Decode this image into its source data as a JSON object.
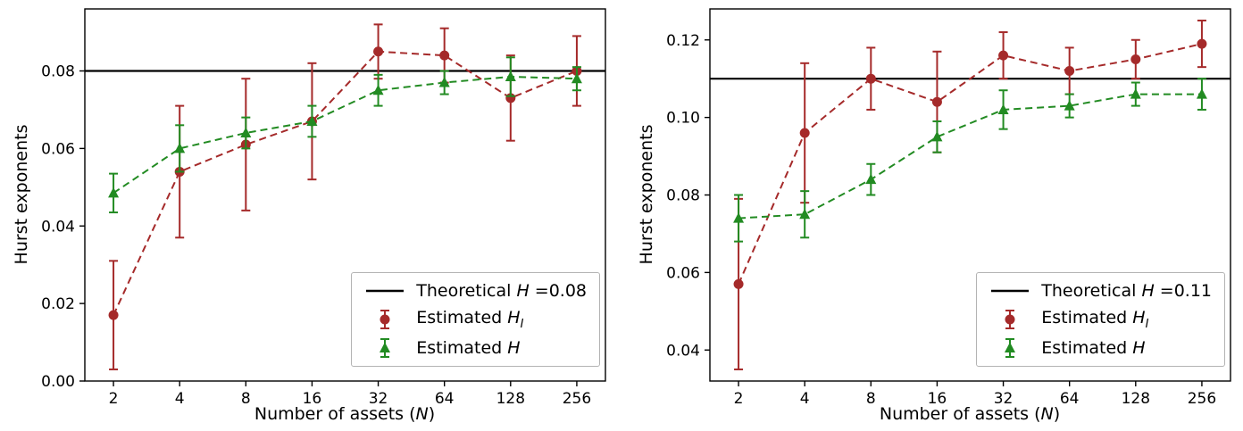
{
  "chart_data": [
    {
      "type": "line",
      "title": "",
      "ylabel": "Hurst exponents",
      "xlabel": {
        "prefix": "Number of assets (",
        "var": "N",
        "suffix": ")"
      },
      "categories": [
        "2",
        "4",
        "8",
        "16",
        "32",
        "64",
        "128",
        "256"
      ],
      "ylim": [
        0.0,
        0.096
      ],
      "ytick_values": [
        0.0,
        0.02,
        0.04,
        0.06,
        0.08
      ],
      "ytick_labels": [
        "0.00",
        "0.02",
        "0.04",
        "0.06",
        "0.08"
      ],
      "grid": false,
      "legend_position": "lower right",
      "theoretical": 0.08,
      "theoretical_color": "#000000",
      "series": [
        {
          "name": "Estimated H_I",
          "color": "#a52a2a",
          "marker": "circle",
          "linestyle": "dashed",
          "values": [
            0.017,
            0.054,
            0.061,
            0.067,
            0.085,
            0.084,
            0.073,
            0.08
          ],
          "errors": [
            0.014,
            0.017,
            0.017,
            0.015,
            0.007,
            0.007,
            0.011,
            0.009
          ]
        },
        {
          "name": "Estimated H",
          "color": "#228b22",
          "marker": "triangle",
          "linestyle": "dashed",
          "values": [
            0.0485,
            0.06,
            0.064,
            0.067,
            0.075,
            0.077,
            0.0785,
            0.078
          ],
          "errors": [
            0.005,
            0.006,
            0.004,
            0.004,
            0.004,
            0.003,
            0.005,
            0.003
          ]
        }
      ],
      "legend": [
        {
          "prefix": "Theoretical ",
          "var": "H",
          "suffix": " =0.08",
          "sub": ""
        },
        {
          "prefix": "Estimated ",
          "var": "H",
          "suffix": "",
          "sub": "I"
        },
        {
          "prefix": "Estimated ",
          "var": "H",
          "suffix": "",
          "sub": ""
        }
      ]
    },
    {
      "type": "line",
      "title": "",
      "ylabel": "Hurst exponents",
      "xlabel": {
        "prefix": "Number of assets (",
        "var": "N",
        "suffix": ")"
      },
      "categories": [
        "2",
        "4",
        "8",
        "16",
        "32",
        "64",
        "128",
        "256"
      ],
      "ylim": [
        0.032,
        0.128
      ],
      "ytick_values": [
        0.04,
        0.06,
        0.08,
        0.1,
        0.12
      ],
      "ytick_labels": [
        "0.04",
        "0.06",
        "0.08",
        "0.10",
        "0.12"
      ],
      "grid": false,
      "legend_position": "lower right",
      "theoretical": 0.11,
      "theoretical_color": "#000000",
      "series": [
        {
          "name": "Estimated H_I",
          "color": "#a52a2a",
          "marker": "circle",
          "linestyle": "dashed",
          "values": [
            0.057,
            0.096,
            0.11,
            0.104,
            0.116,
            0.112,
            0.115,
            0.119
          ],
          "errors": [
            0.022,
            0.018,
            0.008,
            0.013,
            0.006,
            0.006,
            0.005,
            0.006
          ]
        },
        {
          "name": "Estimated H",
          "color": "#228b22",
          "marker": "triangle",
          "linestyle": "dashed",
          "values": [
            0.074,
            0.075,
            0.084,
            0.095,
            0.102,
            0.103,
            0.106,
            0.106
          ],
          "errors": [
            0.006,
            0.006,
            0.004,
            0.004,
            0.005,
            0.003,
            0.003,
            0.004
          ]
        }
      ],
      "legend": [
        {
          "prefix": "Theoretical ",
          "var": "H",
          "suffix": " =0.11",
          "sub": ""
        },
        {
          "prefix": "Estimated ",
          "var": "H",
          "suffix": "",
          "sub": "I"
        },
        {
          "prefix": "Estimated ",
          "var": "H",
          "suffix": "",
          "sub": ""
        }
      ]
    }
  ]
}
